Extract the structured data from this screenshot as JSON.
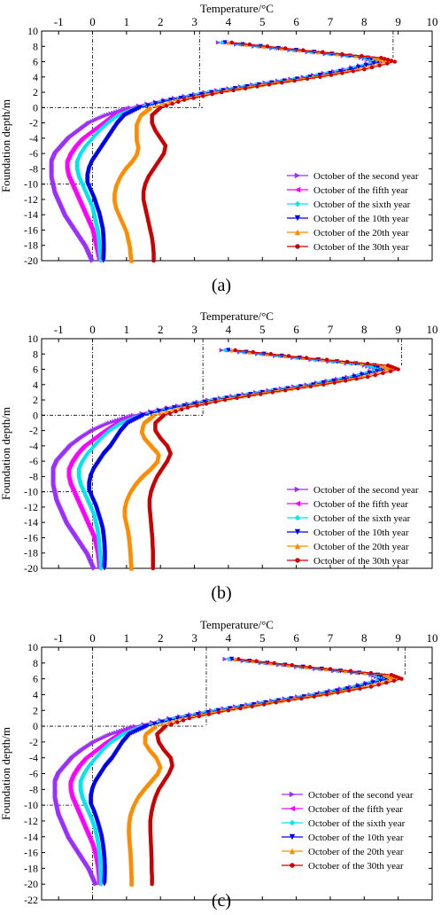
{
  "figure": {
    "panel_labels": [
      "(a)",
      "(b)",
      "(c)"
    ]
  },
  "series_colors": [
    "#9B30FF",
    "#FF00FF",
    "#00E5EE",
    "#0000EE",
    "#FF8C00",
    "#CC0000"
  ],
  "series_markers": [
    "triangle-right",
    "triangle-left",
    "diamond",
    "triangle-down",
    "triangle-up",
    "circle"
  ],
  "chart_data": [
    {
      "type": "line",
      "panel": "(a)",
      "xlabel": "Temperature/°C",
      "ylabel": "Foundation depth/m",
      "xlim": [
        -1.5,
        10
      ],
      "ylim": [
        -20,
        10
      ],
      "xticks": [
        -1,
        0,
        1,
        2,
        3,
        4,
        5,
        6,
        7,
        8,
        9,
        10
      ],
      "yticks": [
        10,
        8,
        6,
        4,
        2,
        0,
        -2,
        -4,
        -6,
        -8,
        -10,
        -12,
        -14,
        -16,
        -18,
        -20
      ],
      "x_axis_position": "top",
      "grid": false,
      "legend_position": "bottom-right",
      "reference_lines": {
        "vertical": [
          0,
          3.15,
          8.85
        ],
        "horizontal": [
          0,
          -10
        ]
      },
      "y": [
        8.5,
        7.5,
        6.5,
        6.0,
        5.0,
        4.0,
        3.0,
        2.0,
        1.0,
        0.0,
        -1.0,
        -2.0,
        -3.0,
        -4.0,
        -5.0,
        -6.0,
        -7.0,
        -8.0,
        -9.0,
        -10.0,
        -11.0,
        -12.0,
        -13.0,
        -14.0,
        -15.0,
        -16.0,
        -17.0,
        -18.0,
        -19.0,
        -20.0
      ],
      "series": [
        {
          "name": "October of the second year",
          "x": [
            3.7,
            5.8,
            7.9,
            8.3,
            7.4,
            6.2,
            4.7,
            3.3,
            2.1,
            1.1,
            0.4,
            -0.1,
            -0.4,
            -0.7,
            -0.9,
            -1.1,
            -1.2,
            -1.2,
            -1.2,
            -1.15,
            -1.1,
            -1.0,
            -0.9,
            -0.8,
            -0.65,
            -0.5,
            -0.35,
            -0.2,
            -0.1,
            0.0
          ]
        },
        {
          "name": "October of the fifth year",
          "x": [
            3.8,
            5.9,
            8.0,
            8.4,
            7.5,
            6.3,
            4.8,
            3.4,
            2.2,
            1.2,
            0.6,
            0.3,
            0.0,
            -0.3,
            -0.5,
            -0.65,
            -0.75,
            -0.75,
            -0.7,
            -0.6,
            -0.5,
            -0.4,
            -0.3,
            -0.2,
            -0.1,
            0.0,
            0.05,
            0.1,
            0.15,
            0.2
          ]
        },
        {
          "name": "October of the sixth year",
          "x": [
            3.8,
            5.9,
            8.0,
            8.4,
            7.5,
            6.3,
            4.8,
            3.4,
            2.25,
            1.3,
            0.75,
            0.45,
            0.2,
            0.0,
            -0.2,
            -0.35,
            -0.45,
            -0.45,
            -0.4,
            -0.3,
            -0.2,
            -0.1,
            0.0,
            0.05,
            0.1,
            0.15,
            0.18,
            0.2,
            0.22,
            0.25
          ]
        },
        {
          "name": "October of the 10th year",
          "x": [
            3.9,
            6.0,
            8.1,
            8.5,
            7.6,
            6.4,
            4.9,
            3.5,
            2.3,
            1.4,
            0.95,
            0.75,
            0.6,
            0.45,
            0.3,
            0.15,
            0.0,
            -0.1,
            -0.15,
            -0.15,
            -0.05,
            0.05,
            0.12,
            0.2,
            0.25,
            0.3,
            0.32,
            0.33,
            0.33,
            0.32
          ]
        },
        {
          "name": "October of the 20th year",
          "x": [
            4.0,
            6.1,
            8.3,
            8.7,
            7.8,
            6.5,
            5.0,
            3.6,
            2.5,
            1.7,
            1.4,
            1.3,
            1.3,
            1.3,
            1.35,
            1.3,
            1.15,
            0.95,
            0.8,
            0.7,
            0.65,
            0.65,
            0.7,
            0.8,
            0.9,
            1.0,
            1.05,
            1.1,
            1.12,
            1.15
          ]
        },
        {
          "name": "October of the 30th year",
          "x": [
            4.1,
            6.2,
            8.5,
            8.9,
            8.0,
            6.7,
            5.2,
            3.8,
            2.7,
            2.0,
            1.75,
            1.75,
            1.85,
            2.0,
            2.15,
            2.1,
            1.95,
            1.8,
            1.65,
            1.55,
            1.5,
            1.5,
            1.55,
            1.6,
            1.65,
            1.7,
            1.75,
            1.78,
            1.8,
            1.8
          ]
        }
      ]
    },
    {
      "type": "line",
      "panel": "(b)",
      "xlabel": "Temperature/°C",
      "ylabel": "Foundation depth/m",
      "xlim": [
        -1.5,
        10
      ],
      "ylim": [
        -20,
        10
      ],
      "xticks": [
        -1,
        0,
        1,
        2,
        3,
        4,
        5,
        6,
        7,
        8,
        9,
        10
      ],
      "yticks": [
        10,
        8,
        6,
        4,
        2,
        0,
        -2,
        -4,
        -6,
        -8,
        -10,
        -12,
        -14,
        -16,
        -18,
        -20
      ],
      "x_axis_position": "top",
      "grid": false,
      "legend_position": "bottom-right",
      "reference_lines": {
        "vertical": [
          0,
          3.25,
          9.1
        ],
        "horizontal": [
          0,
          -10
        ]
      },
      "y": [
        8.5,
        7.5,
        6.5,
        6.0,
        5.0,
        4.0,
        3.0,
        2.0,
        1.0,
        0.0,
        -1.0,
        -2.0,
        -3.0,
        -4.0,
        -5.0,
        -6.0,
        -7.0,
        -8.0,
        -9.0,
        -10.0,
        -11.0,
        -12.0,
        -13.0,
        -14.0,
        -15.0,
        -16.0,
        -17.0,
        -18.0,
        -19.0,
        -20.0
      ],
      "series": [
        {
          "name": "October of the second year",
          "x": [
            3.8,
            5.9,
            8.0,
            8.4,
            7.5,
            6.3,
            4.8,
            3.4,
            2.2,
            1.2,
            0.5,
            0.0,
            -0.35,
            -0.65,
            -0.85,
            -1.05,
            -1.15,
            -1.15,
            -1.15,
            -1.1,
            -1.05,
            -0.95,
            -0.85,
            -0.75,
            -0.6,
            -0.45,
            -0.3,
            -0.15,
            -0.05,
            0.05
          ]
        },
        {
          "name": "October of the fifth year",
          "x": [
            3.9,
            6.0,
            8.1,
            8.5,
            7.6,
            6.4,
            4.9,
            3.5,
            2.3,
            1.3,
            0.7,
            0.35,
            0.05,
            -0.25,
            -0.45,
            -0.6,
            -0.7,
            -0.7,
            -0.65,
            -0.55,
            -0.45,
            -0.35,
            -0.25,
            -0.15,
            -0.05,
            0.05,
            0.1,
            0.15,
            0.18,
            0.2
          ]
        },
        {
          "name": "October of the sixth year",
          "x": [
            3.9,
            6.0,
            8.1,
            8.5,
            7.6,
            6.4,
            4.9,
            3.5,
            2.35,
            1.4,
            0.85,
            0.5,
            0.25,
            0.05,
            -0.15,
            -0.3,
            -0.4,
            -0.4,
            -0.35,
            -0.25,
            -0.15,
            -0.05,
            0.05,
            0.1,
            0.15,
            0.18,
            0.2,
            0.22,
            0.24,
            0.25
          ]
        },
        {
          "name": "October of the 10th year",
          "x": [
            4.0,
            6.1,
            8.3,
            8.6,
            7.7,
            6.5,
            5.0,
            3.6,
            2.4,
            1.5,
            1.05,
            0.85,
            0.7,
            0.55,
            0.35,
            0.2,
            0.05,
            -0.05,
            -0.1,
            -0.1,
            0.0,
            0.1,
            0.17,
            0.24,
            0.3,
            0.33,
            0.35,
            0.36,
            0.36,
            0.35
          ]
        },
        {
          "name": "October of the 20th year",
          "x": [
            4.1,
            6.2,
            8.5,
            8.8,
            7.9,
            6.6,
            5.1,
            3.7,
            2.6,
            1.8,
            1.5,
            1.45,
            1.55,
            1.75,
            1.95,
            1.9,
            1.7,
            1.45,
            1.25,
            1.1,
            1.0,
            0.95,
            0.95,
            1.0,
            1.05,
            1.08,
            1.1,
            1.12,
            1.13,
            1.15
          ]
        },
        {
          "name": "October of the 30th year",
          "x": [
            4.2,
            6.3,
            8.7,
            9.0,
            8.1,
            6.8,
            5.3,
            3.9,
            2.8,
            2.1,
            1.85,
            1.85,
            2.0,
            2.2,
            2.3,
            2.2,
            2.05,
            1.9,
            1.8,
            1.72,
            1.68,
            1.68,
            1.7,
            1.72,
            1.74,
            1.76,
            1.77,
            1.78,
            1.78,
            1.78
          ]
        }
      ]
    },
    {
      "type": "line",
      "panel": "(c)",
      "xlabel": "Temperature/°C",
      "ylabel": "Foundation depth/m",
      "xlim": [
        -1.5,
        10
      ],
      "ylim": [
        -22,
        10
      ],
      "xticks": [
        -1,
        0,
        1,
        2,
        3,
        4,
        5,
        6,
        7,
        8,
        9,
        10
      ],
      "yticks": [
        10,
        8,
        6,
        4,
        2,
        0,
        -2,
        -4,
        -6,
        -8,
        -10,
        -12,
        -14,
        -16,
        -18,
        -20,
        -22
      ],
      "x_axis_position": "top",
      "grid": false,
      "legend_position": "bottom-right",
      "reference_lines": {
        "vertical": [
          0,
          3.35,
          9.2
        ],
        "horizontal": [
          0,
          -10
        ]
      },
      "y": [
        8.5,
        7.5,
        6.5,
        6.0,
        5.0,
        4.0,
        3.0,
        2.0,
        1.0,
        0.0,
        -1.0,
        -2.0,
        -3.0,
        -4.0,
        -5.0,
        -6.0,
        -7.0,
        -8.0,
        -9.0,
        -10.0,
        -11.0,
        -12.0,
        -13.0,
        -14.0,
        -15.0,
        -16.0,
        -17.0,
        -18.0,
        -19.0,
        -20.0
      ],
      "series": [
        {
          "name": "October of the second year",
          "x": [
            3.9,
            6.0,
            8.2,
            8.5,
            7.6,
            6.4,
            4.9,
            3.5,
            2.25,
            1.25,
            0.55,
            0.05,
            -0.3,
            -0.6,
            -0.8,
            -1.0,
            -1.1,
            -1.1,
            -1.1,
            -1.05,
            -1.0,
            -0.9,
            -0.8,
            -0.7,
            -0.55,
            -0.4,
            -0.25,
            -0.1,
            0.0,
            0.1
          ]
        },
        {
          "name": "October of the fifth year",
          "x": [
            4.0,
            6.1,
            8.3,
            8.6,
            7.7,
            6.5,
            5.0,
            3.6,
            2.35,
            1.35,
            0.75,
            0.4,
            0.1,
            -0.2,
            -0.4,
            -0.55,
            -0.65,
            -0.65,
            -0.6,
            -0.5,
            -0.4,
            -0.3,
            -0.2,
            -0.1,
            0.0,
            0.07,
            0.12,
            0.16,
            0.18,
            0.2
          ]
        },
        {
          "name": "October of the sixth year",
          "x": [
            4.0,
            6.1,
            8.3,
            8.6,
            7.7,
            6.5,
            5.0,
            3.6,
            2.4,
            1.45,
            0.9,
            0.55,
            0.3,
            0.1,
            -0.1,
            -0.25,
            -0.35,
            -0.35,
            -0.3,
            -0.2,
            -0.1,
            0.0,
            0.08,
            0.13,
            0.17,
            0.2,
            0.22,
            0.23,
            0.24,
            0.25
          ]
        },
        {
          "name": "October of the 10th year",
          "x": [
            4.1,
            6.2,
            8.4,
            8.7,
            7.8,
            6.6,
            5.1,
            3.7,
            2.5,
            1.6,
            1.1,
            0.9,
            0.75,
            0.6,
            0.4,
            0.25,
            0.1,
            0.0,
            -0.05,
            -0.05,
            0.05,
            0.13,
            0.2,
            0.26,
            0.3,
            0.33,
            0.35,
            0.36,
            0.36,
            0.35
          ]
        },
        {
          "name": "October of the 20th year",
          "x": [
            4.2,
            6.3,
            8.6,
            8.9,
            8.0,
            6.7,
            5.2,
            3.8,
            2.65,
            1.85,
            1.55,
            1.55,
            1.7,
            1.9,
            2.0,
            1.9,
            1.7,
            1.5,
            1.32,
            1.2,
            1.12,
            1.08,
            1.07,
            1.08,
            1.1,
            1.12,
            1.13,
            1.14,
            1.15,
            1.15
          ]
        },
        {
          "name": "October of the 30th year",
          "x": [
            4.3,
            6.4,
            8.8,
            9.1,
            8.2,
            6.9,
            5.4,
            4.0,
            2.85,
            2.15,
            1.9,
            1.95,
            2.1,
            2.3,
            2.35,
            2.25,
            2.1,
            1.95,
            1.85,
            1.78,
            1.73,
            1.7,
            1.7,
            1.71,
            1.72,
            1.73,
            1.74,
            1.74,
            1.75,
            1.75
          ]
        }
      ]
    }
  ]
}
